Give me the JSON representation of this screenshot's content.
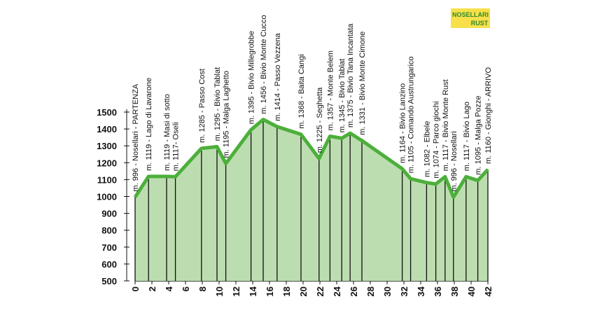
{
  "chart_data": {
    "type": "area",
    "logo": [
      "NOSELLARI",
      "RUST"
    ],
    "x": [
      0,
      1.6,
      3.75,
      4.8,
      7.9,
      9.75,
      10.8,
      13.8,
      15.25,
      16.9,
      19.75,
      21.9,
      23.2,
      24.6,
      25.6,
      27,
      31.8,
      32.8,
      34.7,
      35.8,
      36.9,
      37.9,
      39.4,
      40.8,
      42
    ],
    "series": [
      {
        "color": "#4caf3a",
        "fill": "#bcddb0",
        "values": [
          996,
          1119,
          1119,
          1117,
          1285,
          1295,
          1195,
          1395,
          1456,
          1414,
          1368,
          1225,
          1357,
          1345,
          1375,
          1331,
          1164,
          1105,
          1082,
          1074,
          1117,
          996,
          1117,
          1095,
          1160
        ],
        "point_labels": [
          "m. 996 - Nosellari - PARTENZA",
          "m. 1119 - Lago di Lavarone",
          "m. 1119 - Masi di sotto",
          "m. 1117- Oseli",
          "m. 1285 - Passo Cost",
          "m. 1295 - Bivio Tablat",
          "m. 1195 - Malga Laghetto",
          "m. 1395 - Bivio Millegrobbe",
          "m. 1456 - Bivio Monte Cucco",
          "m. 1414 - Passo Vezzena",
          "m. 1368 - Baita Cangi",
          "m. 1225 - Seghetta",
          "m. 1357 - Monte Belem",
          "m. 1345 - Bivio Tablat",
          "m. 1375 - Bivio Tana Incantata",
          "m. 1331 - Bivio Monte Cimone",
          "m. 1164 - Bivio Lanzino",
          "m. 1105 - Comando Austrungarico",
          "m. 1082 - Elbele",
          "m. 1074 - Parco giochi",
          "m. 1117 - Bivio Monte Rust",
          "m. 996 - Nosellari",
          "m. 1117 - Bivio Lago",
          "m. 1095 - Malga Pozze",
          "m. 1160 - Gionghi - ARRIVO"
        ]
      }
    ],
    "xlim": [
      0,
      42
    ],
    "xticks": [
      0,
      2,
      4,
      6,
      8,
      10,
      12,
      14,
      16,
      18,
      20,
      22,
      24,
      26,
      28,
      30,
      32,
      34,
      36,
      38,
      40,
      42
    ],
    "ylim": [
      500,
      1500
    ],
    "yticks": [
      500,
      600,
      700,
      800,
      900,
      1000,
      1100,
      1200,
      1300,
      1400,
      1500
    ]
  }
}
